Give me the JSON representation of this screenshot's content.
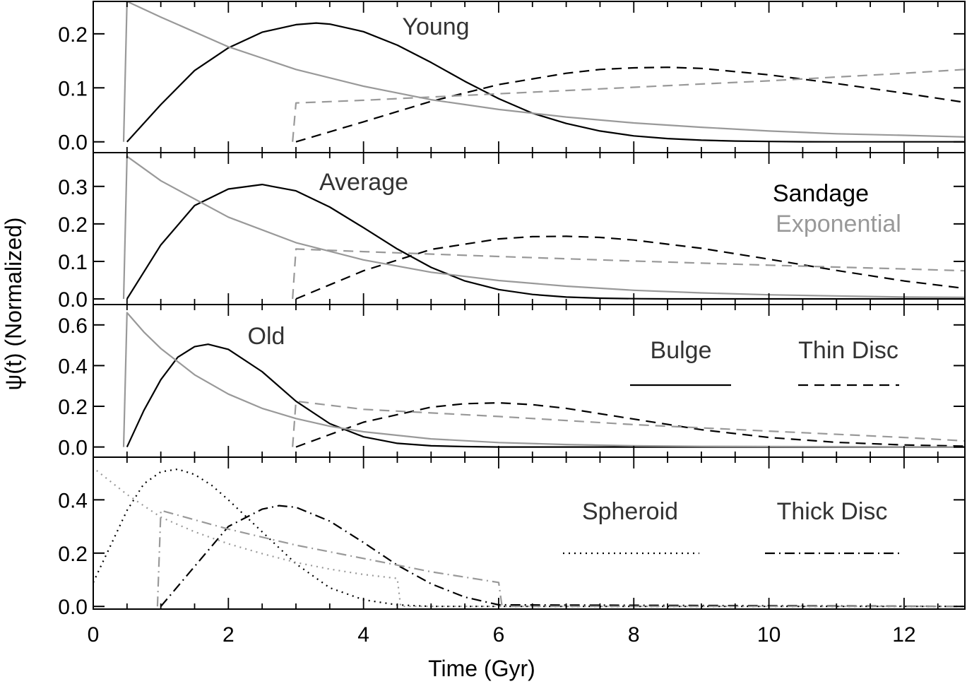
{
  "chart_data": {
    "type": "line",
    "xlabel": "Time (Gyr)",
    "ylabel": "ψ(t) (Normalized)",
    "xlim": [
      0,
      12.9
    ],
    "xticks": [
      0,
      2,
      4,
      6,
      8,
      10,
      12
    ],
    "colors": {
      "sandage": "#000000",
      "exponential": "#999999",
      "label": "#333333"
    },
    "color_legend": [
      {
        "label": "Sandage",
        "color": "#000000"
      },
      {
        "label": "Exponential",
        "color": "#999999"
      }
    ],
    "style_legend_top": [
      {
        "label": "Bulge",
        "dash": "solid"
      },
      {
        "label": "Thin Disc",
        "dash": "dashed"
      }
    ],
    "style_legend_bottom": [
      {
        "label": "Spheroid",
        "dash": "dotted"
      },
      {
        "label": "Thick Disc",
        "dash": "dashdot"
      }
    ],
    "panels": [
      {
        "label": "Young",
        "ylim": [
          -0.02,
          0.26
        ],
        "yticks": [
          0.0,
          0.1,
          0.2
        ],
        "ytick_labels": [
          "0.0",
          "0.1",
          "0.2"
        ],
        "series": [
          {
            "name": "Bulge (Sandage)",
            "color": "sandage",
            "dash": "solid",
            "x": [
              0.5,
              1.0,
              1.5,
              2.0,
              2.5,
              3.0,
              3.3,
              3.5,
              4.0,
              4.5,
              5.0,
              5.5,
              6.0,
              6.5,
              7.0,
              7.5,
              8.0,
              8.5,
              9.0,
              9.5,
              10.0,
              10.5,
              11.0,
              12.9
            ],
            "y": [
              0.0,
              0.069,
              0.132,
              0.174,
              0.203,
              0.217,
              0.22,
              0.218,
              0.204,
              0.179,
              0.147,
              0.112,
              0.08,
              0.053,
              0.034,
              0.02,
              0.011,
              0.006,
              0.003,
              0.0015,
              0.0007,
              0.0002,
              0.0,
              0.0
            ]
          },
          {
            "name": "Thin Disc (Sandage)",
            "color": "sandage",
            "dash": "dashed",
            "x": [
              3.0,
              4.0,
              5.0,
              6.0,
              7.0,
              7.5,
              8.0,
              8.5,
              9.0,
              10.0,
              11.0,
              12.0,
              12.9
            ],
            "y": [
              0.0,
              0.037,
              0.075,
              0.106,
              0.127,
              0.134,
              0.137,
              0.138,
              0.136,
              0.124,
              0.108,
              0.09,
              0.073
            ]
          },
          {
            "name": "Bulge (Exponential)",
            "color": "exponential",
            "dash": "solid",
            "x": [
              0.45,
              0.5,
              1.0,
              2.0,
              3.0,
              4.0,
              5.0,
              6.0,
              7.0,
              8.0,
              9.0,
              10.0,
              11.0,
              12.0,
              12.9
            ],
            "y": [
              0.0,
              0.26,
              0.231,
              0.176,
              0.134,
              0.103,
              0.078,
              0.06,
              0.046,
              0.035,
              0.027,
              0.02,
              0.015,
              0.012,
              0.009
            ]
          },
          {
            "name": "Thin Disc (Exponential)",
            "color": "exponential",
            "dash": "dashed",
            "x": [
              2.95,
              3.0,
              4.0,
              5.0,
              6.0,
              7.0,
              8.0,
              9.0,
              10.0,
              11.0,
              12.0,
              12.9
            ],
            "y": [
              0.0,
              0.072,
              0.077,
              0.083,
              0.089,
              0.095,
              0.101,
              0.107,
              0.113,
              0.12,
              0.127,
              0.134
            ]
          }
        ]
      },
      {
        "label": "Average",
        "ylim": [
          -0.015,
          0.39
        ],
        "yticks": [
          0.0,
          0.1,
          0.2,
          0.3
        ],
        "ytick_labels": [
          "0.0",
          "0.1",
          "0.2",
          "0.3"
        ],
        "series": [
          {
            "name": "Bulge (Sandage)",
            "color": "sandage",
            "dash": "solid",
            "x": [
              0.5,
              1.0,
              1.5,
              2.0,
              2.5,
              3.0,
              3.5,
              4.0,
              4.5,
              5.0,
              5.5,
              6.0,
              6.5,
              7.0,
              7.5,
              8.0,
              8.5,
              12.9
            ],
            "y": [
              0.0,
              0.144,
              0.249,
              0.293,
              0.305,
              0.288,
              0.245,
              0.19,
              0.133,
              0.084,
              0.048,
              0.025,
              0.012,
              0.005,
              0.002,
              0.0007,
              0.0,
              0.0
            ]
          },
          {
            "name": "Thin Disc (Sandage)",
            "color": "sandage",
            "dash": "dashed",
            "x": [
              3.0,
              4.0,
              5.0,
              6.0,
              6.5,
              7.0,
              7.5,
              8.0,
              9.0,
              10.0,
              11.0,
              12.0,
              12.9
            ],
            "y": [
              0.0,
              0.075,
              0.132,
              0.16,
              0.166,
              0.167,
              0.164,
              0.157,
              0.135,
              0.106,
              0.076,
              0.048,
              0.028
            ]
          },
          {
            "name": "Bulge (Exponential)",
            "color": "exponential",
            "dash": "solid",
            "x": [
              0.45,
              0.5,
              1.0,
              2.0,
              3.0,
              4.0,
              5.0,
              6.0,
              7.0,
              8.0,
              9.0,
              10.0,
              11.0,
              12.0,
              12.9
            ],
            "y": [
              0.0,
              0.38,
              0.315,
              0.218,
              0.15,
              0.104,
              0.071,
              0.049,
              0.034,
              0.023,
              0.016,
              0.011,
              0.008,
              0.005,
              0.004
            ]
          },
          {
            "name": "Thin Disc (Exponential)",
            "color": "exponential",
            "dash": "dashed",
            "x": [
              2.95,
              3.0,
              4.0,
              6.0,
              8.0,
              10.0,
              12.0,
              12.9
            ],
            "y": [
              0.0,
              0.133,
              0.126,
              0.113,
              0.101,
              0.09,
              0.08,
              0.075
            ]
          }
        ]
      },
      {
        "label": "Old",
        "ylim": [
          -0.05,
          0.7
        ],
        "yticks": [
          0.0,
          0.2,
          0.4,
          0.6
        ],
        "ytick_labels": [
          "0.0",
          "0.2",
          "0.4",
          "0.6"
        ],
        "series": [
          {
            "name": "Bulge (Sandage)",
            "color": "sandage",
            "dash": "solid",
            "x": [
              0.5,
              0.75,
              1.0,
              1.25,
              1.5,
              1.7,
              2.0,
              2.5,
              3.0,
              3.5,
              4.0,
              4.5,
              5.0,
              5.5,
              6.0,
              12.9
            ],
            "y": [
              0.0,
              0.18,
              0.331,
              0.441,
              0.493,
              0.505,
              0.48,
              0.37,
              0.225,
              0.115,
              0.05,
              0.018,
              0.006,
              0.002,
              0.0,
              0.0
            ]
          },
          {
            "name": "Thin Disc (Sandage)",
            "color": "sandage",
            "dash": "dashed",
            "x": [
              3.0,
              4.0,
              5.0,
              5.5,
              6.0,
              6.5,
              7.0,
              8.0,
              9.0,
              10.0,
              11.0,
              12.0,
              12.9
            ],
            "y": [
              0.0,
              0.122,
              0.196,
              0.213,
              0.217,
              0.208,
              0.19,
              0.137,
              0.085,
              0.047,
              0.023,
              0.01,
              0.004
            ]
          },
          {
            "name": "Bulge (Exponential)",
            "color": "exponential",
            "dash": "solid",
            "x": [
              0.45,
              0.5,
              0.75,
              1.0,
              1.5,
              2.0,
              2.5,
              3.0,
              3.5,
              4.0,
              5.0,
              6.0,
              7.0,
              8.0,
              9.0,
              12.9
            ],
            "y": [
              0.0,
              0.66,
              0.565,
              0.484,
              0.355,
              0.26,
              0.19,
              0.14,
              0.102,
              0.075,
              0.04,
              0.022,
              0.012,
              0.006,
              0.003,
              0.0
            ]
          },
          {
            "name": "Thin Disc (Exponential)",
            "color": "exponential",
            "dash": "dashed",
            "x": [
              2.95,
              3.0,
              4.0,
              6.0,
              8.0,
              10.0,
              12.0,
              12.9
            ],
            "y": [
              0.0,
              0.225,
              0.185,
              0.15,
              0.11,
              0.078,
              0.047,
              0.03
            ]
          }
        ]
      },
      {
        "label": "",
        "ylim": [
          -0.01,
          0.56
        ],
        "yticks": [
          0.0,
          0.2,
          0.4
        ],
        "ytick_labels": [
          "0.0",
          "0.2",
          "0.4"
        ],
        "series": [
          {
            "name": "Spheroid (Sandage)",
            "color": "sandage",
            "dash": "dotted",
            "x": [
              0.0,
              0.25,
              0.5,
              0.75,
              1.0,
              1.25,
              1.5,
              1.75,
              2.0,
              2.5,
              3.0,
              3.5,
              4.0,
              4.5,
              5.0,
              12.9
            ],
            "y": [
              0.09,
              0.225,
              0.36,
              0.46,
              0.505,
              0.515,
              0.495,
              0.455,
              0.4,
              0.28,
              0.16,
              0.07,
              0.025,
              0.006,
              0.0,
              0.0
            ]
          },
          {
            "name": "Thick Disc (Sandage)",
            "color": "sandage",
            "dash": "dashdot",
            "x": [
              1.0,
              1.5,
              2.0,
              2.5,
              2.75,
              3.0,
              3.5,
              4.0,
              4.5,
              5.0,
              5.5,
              6.0,
              12.9
            ],
            "y": [
              0.0,
              0.15,
              0.3,
              0.365,
              0.378,
              0.372,
              0.32,
              0.24,
              0.155,
              0.085,
              0.035,
              0.006,
              0.0
            ]
          },
          {
            "name": "Spheroid (Exponential)",
            "color": "exponential",
            "dash": "dotted",
            "x": [
              0.05,
              0.5,
              1.0,
              1.5,
              2.0,
              2.5,
              3.0,
              3.5,
              4.0,
              4.5,
              4.55,
              12.9
            ],
            "y": [
              0.51,
              0.42,
              0.335,
              0.28,
              0.235,
              0.198,
              0.165,
              0.14,
              0.12,
              0.105,
              0.0,
              0.0
            ]
          },
          {
            "name": "Thick Disc (Exponential)",
            "color": "exponential",
            "dash": "dashdot",
            "x": [
              0.95,
              1.0,
              2.0,
              3.0,
              4.0,
              5.0,
              6.0,
              6.05,
              12.9
            ],
            "y": [
              0.0,
              0.36,
              0.29,
              0.23,
              0.18,
              0.13,
              0.09,
              0.0,
              0.0
            ]
          }
        ]
      }
    ]
  }
}
